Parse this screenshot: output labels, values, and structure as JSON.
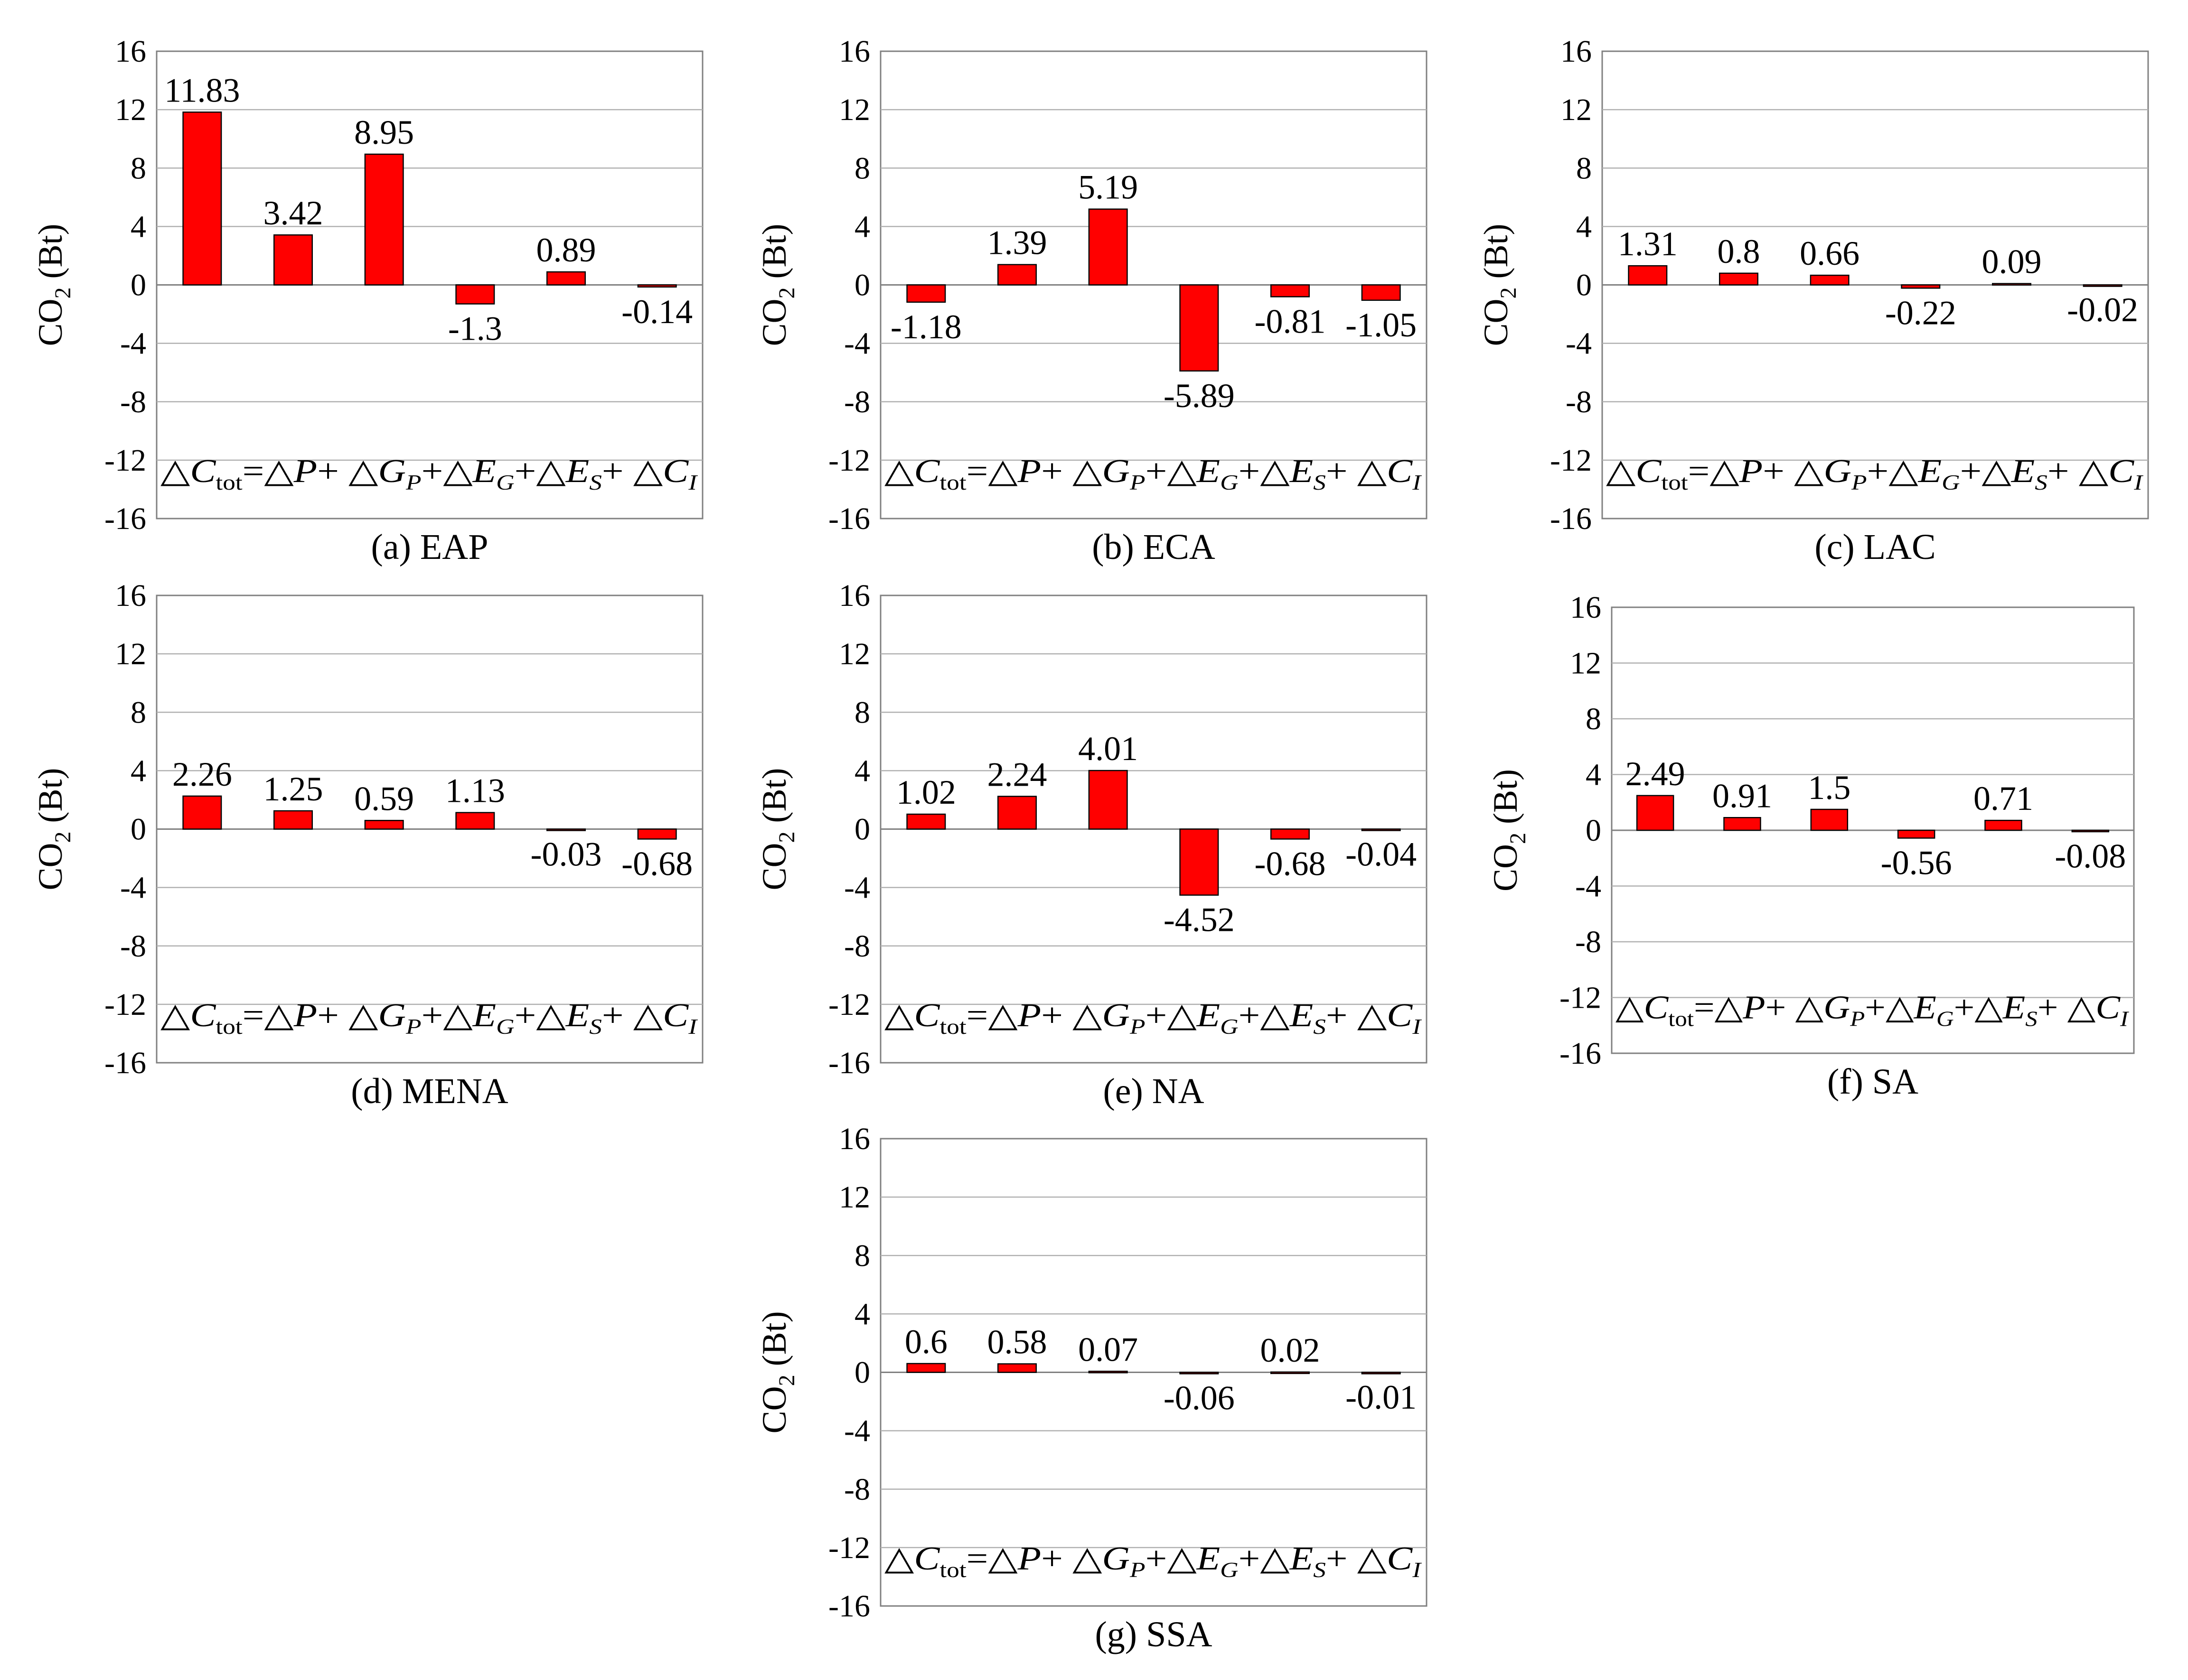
{
  "chart_data": [
    {
      "type": "bar",
      "caption": "(a) EAP",
      "ylabel": "CO2 (Bt)",
      "categories": [
        "ΔCtot",
        "ΔP",
        "ΔGP",
        "ΔEG",
        "ΔES",
        "ΔCI"
      ],
      "values": [
        11.83,
        3.42,
        8.95,
        -1.3,
        0.89,
        -0.14
      ],
      "data_labels": [
        "11.83",
        "3.42",
        "8.95",
        "-1.3",
        "0.89",
        "-0.14"
      ],
      "ylim": [
        -16,
        16
      ],
      "yticks": [
        "16",
        "12",
        "8",
        "4",
        "0",
        "-4",
        "-8",
        "-12",
        "-16"
      ],
      "grid": true,
      "bar_color": "#ff0000"
    },
    {
      "type": "bar",
      "caption": "(b) ECA",
      "ylabel": "CO2 (Bt)",
      "categories": [
        "ΔCtot",
        "ΔP",
        "ΔGP",
        "ΔEG",
        "ΔES",
        "ΔCI"
      ],
      "values": [
        -1.18,
        1.39,
        5.19,
        -5.89,
        -0.81,
        -1.05
      ],
      "data_labels": [
        "-1.18",
        "1.39",
        "5.19",
        "-5.89",
        "-0.81",
        "-1.05"
      ],
      "ylim": [
        -16,
        16
      ],
      "yticks": [
        "16",
        "12",
        "8",
        "4",
        "0",
        "-4",
        "-8",
        "-12",
        "-16"
      ],
      "grid": true,
      "bar_color": "#ff0000"
    },
    {
      "type": "bar",
      "caption": "(c) LAC",
      "ylabel": "CO2 (Bt)",
      "categories": [
        "ΔCtot",
        "ΔP",
        "ΔGP",
        "ΔEG",
        "ΔES",
        "ΔCI"
      ],
      "values": [
        1.31,
        0.8,
        0.66,
        -0.22,
        0.09,
        -0.02
      ],
      "data_labels": [
        "1.31",
        "0.8",
        "0.66",
        "-0.22",
        "0.09",
        "-0.02"
      ],
      "ylim": [
        -16,
        16
      ],
      "yticks": [
        "16",
        "12",
        "8",
        "4",
        "0",
        "-4",
        "-8",
        "-12",
        "-16"
      ],
      "grid": true,
      "bar_color": "#ff0000"
    },
    {
      "type": "bar",
      "caption": "(d) MENA",
      "ylabel": "CO2 (Bt)",
      "categories": [
        "ΔCtot",
        "ΔP",
        "ΔGP",
        "ΔEG",
        "ΔES",
        "ΔCI"
      ],
      "values": [
        2.26,
        1.25,
        0.59,
        1.13,
        -0.03,
        -0.68
      ],
      "data_labels": [
        "2.26",
        "1.25",
        "0.59",
        "1.13",
        "-0.03",
        "-0.68"
      ],
      "ylim": [
        -16,
        16
      ],
      "yticks": [
        "16",
        "12",
        "8",
        "4",
        "0",
        "-4",
        "-8",
        "-12",
        "-16"
      ],
      "grid": true,
      "bar_color": "#ff0000"
    },
    {
      "type": "bar",
      "caption": "(e) NA",
      "ylabel": "CO2 (Bt)",
      "categories": [
        "ΔCtot",
        "ΔP",
        "ΔGP",
        "ΔEG",
        "ΔES",
        "ΔCI"
      ],
      "values": [
        1.02,
        2.24,
        4.01,
        -4.52,
        -0.68,
        -0.04
      ],
      "data_labels": [
        "1.02",
        "2.24",
        "4.01",
        "-4.52",
        "-0.68",
        "-0.04"
      ],
      "ylim": [
        -16,
        16
      ],
      "yticks": [
        "16",
        "12",
        "8",
        "4",
        "0",
        "-4",
        "-8",
        "-12",
        "-16"
      ],
      "grid": true,
      "bar_color": "#ff0000"
    },
    {
      "type": "bar",
      "caption": "(f) SA",
      "ylabel": "CO2 (Bt)",
      "categories": [
        "ΔCtot",
        "ΔP",
        "ΔGP",
        "ΔEG",
        "ΔES",
        "ΔCI"
      ],
      "values": [
        2.49,
        0.91,
        1.5,
        -0.56,
        0.71,
        -0.08
      ],
      "data_labels": [
        "2.49",
        "0.91",
        "1.5",
        "-0.56",
        "0.71",
        "-0.08"
      ],
      "ylim": [
        -16,
        16
      ],
      "yticks": [
        "16",
        "12",
        "8",
        "4",
        "0",
        "-4",
        "-8",
        "-12",
        "-16"
      ],
      "grid": true,
      "bar_color": "#ff0000"
    },
    {
      "type": "bar",
      "caption": "(g) SSA",
      "ylabel": "CO2 (Bt)",
      "categories": [
        "ΔCtot",
        "ΔP",
        "ΔGP",
        "ΔEG",
        "ΔES",
        "ΔCI"
      ],
      "values": [
        0.6,
        0.58,
        0.07,
        -0.06,
        0.02,
        -0.01
      ],
      "data_labels": [
        "0.6",
        "0.58",
        "0.07",
        "-0.06",
        "0.02",
        "-0.01"
      ],
      "ylim": [
        -16,
        16
      ],
      "yticks": [
        "16",
        "12",
        "8",
        "4",
        "0",
        "-4",
        "-8",
        "-12",
        "-16"
      ],
      "grid": true,
      "bar_color": "#ff0000"
    }
  ]
}
